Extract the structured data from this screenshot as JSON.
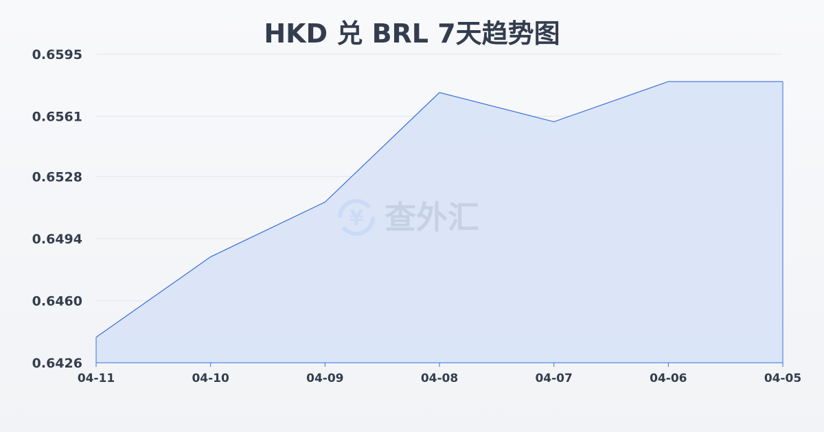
{
  "chart_data": {
    "type": "area",
    "title": "HKD 兑 BRL 7天趋势图",
    "xlabel": "",
    "ylabel": "",
    "categories": [
      "04-11",
      "04-10",
      "04-09",
      "04-08",
      "04-07",
      "04-06",
      "04-05"
    ],
    "values": [
      0.644,
      0.6484,
      0.6514,
      0.6574,
      0.6558,
      0.658,
      0.658
    ],
    "yticks": [
      "0.6595",
      "0.6561",
      "0.6528",
      "0.6494",
      "0.6460",
      "0.6426"
    ],
    "ylim": [
      0.6426,
      0.6595
    ],
    "grid": true,
    "line_color": "#3a6fd8",
    "fill_color": "#d6e2f7"
  },
  "watermark": {
    "text": "查外汇",
    "icon": "yen-exchange-icon",
    "icon_color": "#8fb6f0",
    "text_color": "#6b7585"
  }
}
